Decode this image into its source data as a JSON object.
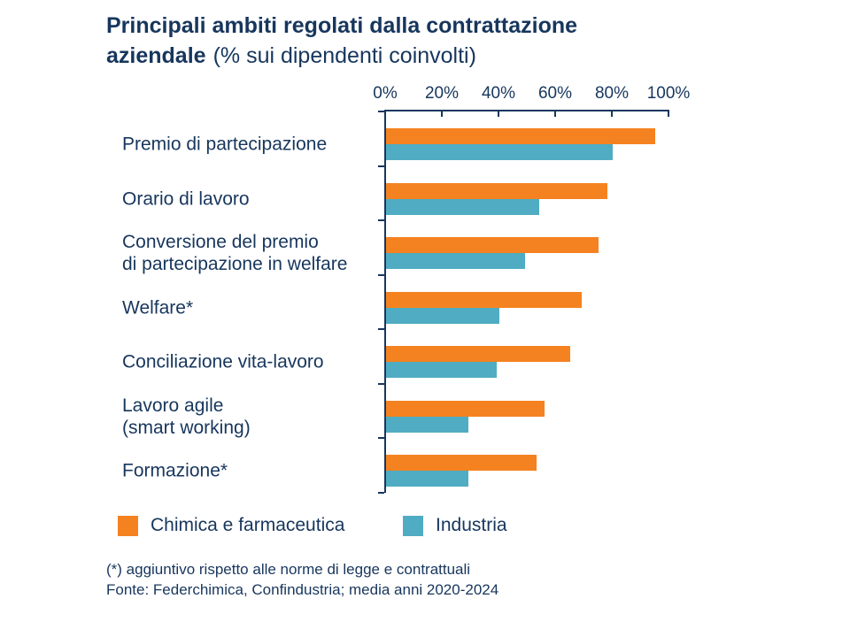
{
  "title": {
    "bold_line1": "Principali ambiti regolati dalla contrattazione",
    "bold_line2": "aziendale",
    "subtitle": "(% sui dipendenti coinvolti)"
  },
  "footnotes": {
    "asterisk_note": "(*) aggiuntivo rispetto alle norme di legge e contrattuali",
    "source": "Fonte: Federchimica, Confindustria; media anni 2020-2024"
  },
  "colors": {
    "text_navy": "#17365D",
    "axis": "#17365D",
    "series_orange": "#F58220",
    "series_teal": "#4FACC2",
    "background": "#FFFFFF"
  },
  "chart_data": {
    "type": "bar",
    "orientation": "horizontal",
    "title": "Principali ambiti regolati dalla contrattazione aziendale (% sui dipendenti coinvolti)",
    "categories": [
      "Premio di partecipazione",
      "Orario di lavoro",
      "Conversione del premio\ndi partecipazione in welfare",
      "Welfare*",
      "Conciliazione vita-lavoro",
      "Lavoro agile\n(smart working)",
      "Formazione*"
    ],
    "series": [
      {
        "name": "Chimica e farmaceutica",
        "color": "#F58220",
        "values": [
          95,
          78,
          75,
          69,
          65,
          56,
          53
        ]
      },
      {
        "name": "Industria",
        "color": "#4FACC2",
        "values": [
          80,
          54,
          49,
          40,
          39,
          29,
          29
        ]
      }
    ],
    "x_axis": {
      "position": "top",
      "min": 0,
      "max": 100,
      "tick_labels": [
        "0%",
        "20%",
        "40%",
        "60%",
        "80%",
        "100%"
      ],
      "unit": "%"
    },
    "grid": false,
    "legend_position": "bottom"
  }
}
